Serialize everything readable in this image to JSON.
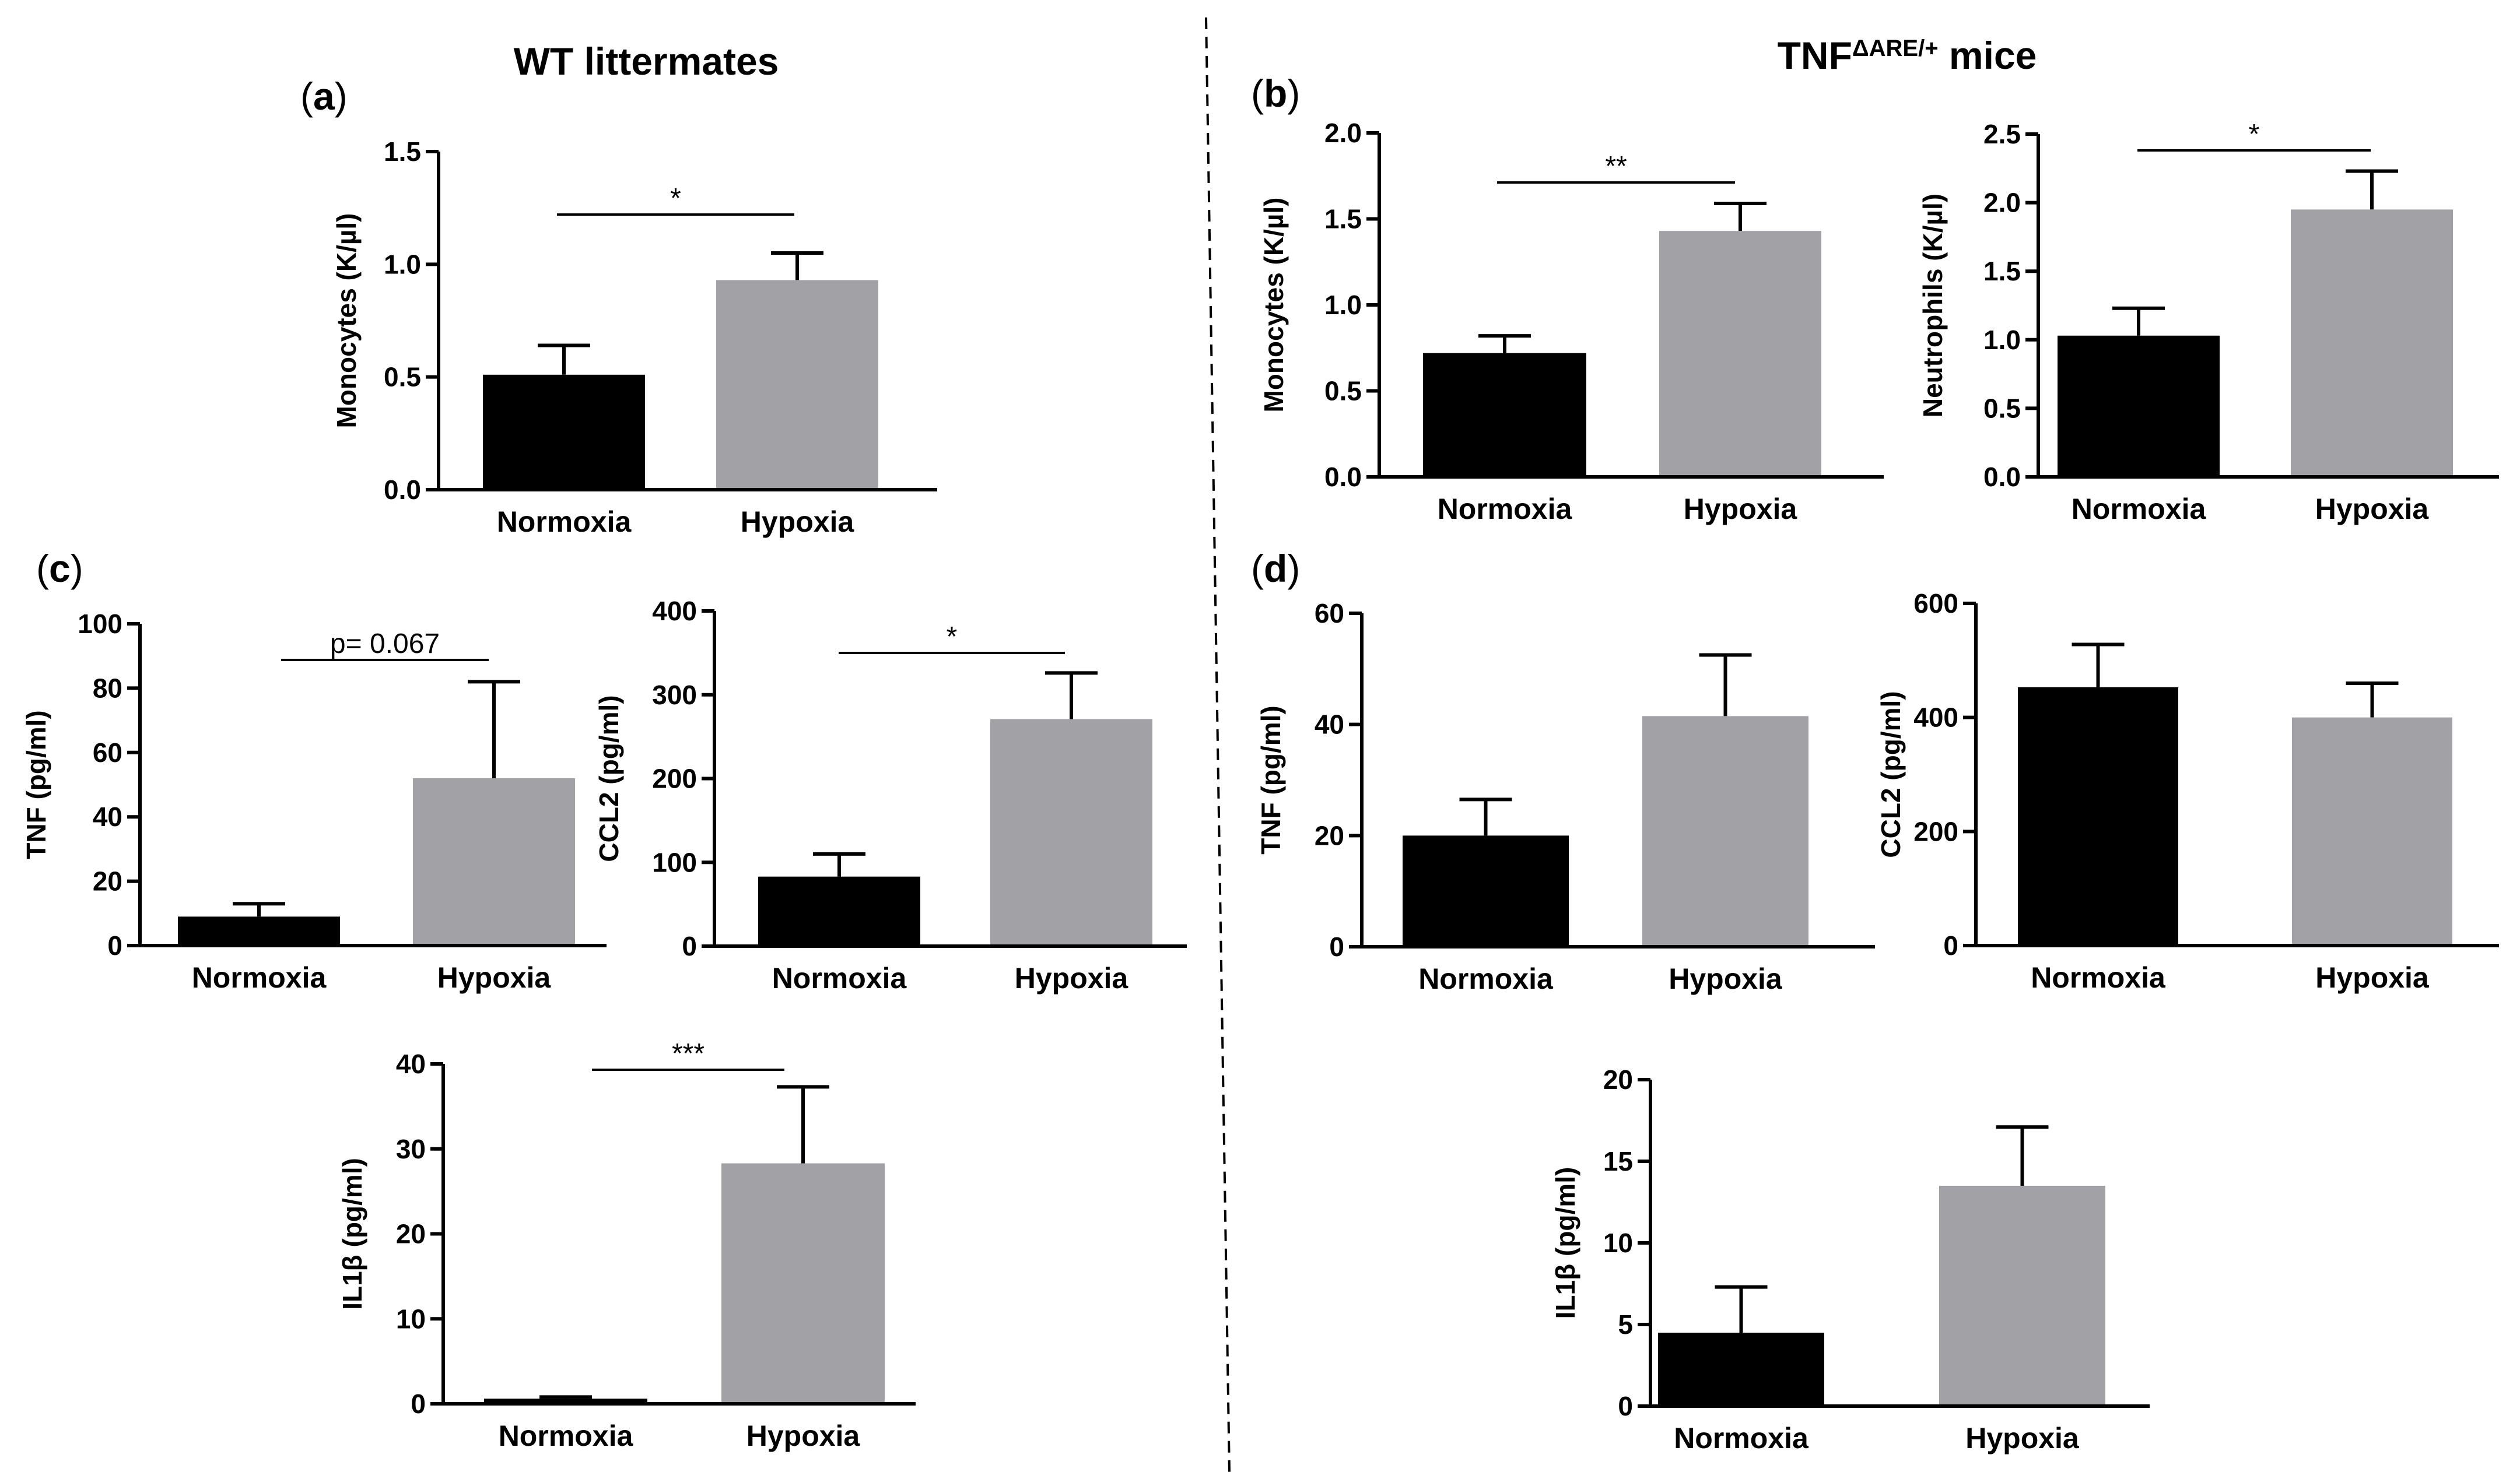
{
  "figure": {
    "title_left": "WT littermates",
    "title_right_main": "TNF",
    "title_right_sup": "ΔARE/+",
    "title_right_rest": " mice"
  },
  "colors": {
    "normoxia": "#000000",
    "hypoxia": "#a2a1a6"
  },
  "chart_data": [
    {
      "id": "a",
      "panel_label": "a",
      "type": "bar",
      "title": "",
      "categories": [
        "Normoxia",
        "Hypoxia"
      ],
      "values": [
        0.51,
        0.93
      ],
      "errors": [
        0.13,
        0.12
      ],
      "ylabel": "Monocytes (K/µl)",
      "xlabel": "",
      "ylim": [
        0,
        1.5
      ],
      "yticks": [
        "0.0",
        "0.5",
        "1.0",
        "1.5"
      ],
      "significance": "*"
    },
    {
      "id": "b1",
      "panel_label": "b",
      "type": "bar",
      "title": "",
      "categories": [
        "Normoxia",
        "Hypoxia"
      ],
      "values": [
        0.72,
        1.43
      ],
      "errors": [
        0.1,
        0.16
      ],
      "ylabel": "Monocytes (K/µl)",
      "xlabel": "",
      "ylim": [
        0,
        2.0
      ],
      "yticks": [
        "0.0",
        "0.5",
        "1.0",
        "1.5",
        "2.0"
      ],
      "significance": "**"
    },
    {
      "id": "b2",
      "panel_label": "",
      "type": "bar",
      "title": "",
      "categories": [
        "Normoxia",
        "Hypoxia"
      ],
      "values": [
        1.03,
        1.95
      ],
      "errors": [
        0.2,
        0.28
      ],
      "ylabel": "Neutrophils (K/µl)",
      "xlabel": "",
      "ylim": [
        0,
        2.5
      ],
      "yticks": [
        "0.0",
        "0.5",
        "1.0",
        "1.5",
        "2.0",
        "2.5"
      ],
      "significance": "*"
    },
    {
      "id": "c1",
      "panel_label": "c",
      "type": "bar",
      "title": "",
      "categories": [
        "Normoxia",
        "Hypoxia"
      ],
      "values": [
        9,
        52
      ],
      "errors": [
        4,
        30
      ],
      "ylabel": "TNF (pg/ml)",
      "xlabel": "",
      "ylim": [
        0,
        100
      ],
      "yticks": [
        "0",
        "20",
        "40",
        "60",
        "80",
        "100"
      ],
      "significance": "p= 0.067"
    },
    {
      "id": "c2",
      "panel_label": "",
      "type": "bar",
      "title": "",
      "categories": [
        "Normoxia",
        "Hypoxia"
      ],
      "values": [
        83,
        271
      ],
      "errors": [
        27,
        55
      ],
      "ylabel": "CCL2 (pg/ml)",
      "xlabel": "",
      "ylim": [
        0,
        400
      ],
      "yticks": [
        "0",
        "100",
        "200",
        "300",
        "400"
      ],
      "significance": "*"
    },
    {
      "id": "c3",
      "panel_label": "",
      "type": "bar",
      "title": "",
      "categories": [
        "Normoxia",
        "Hypoxia"
      ],
      "values": [
        0.6,
        28.3
      ],
      "errors": [
        0.2,
        9
      ],
      "ylabel": "IL1β (pg/ml)",
      "xlabel": "",
      "ylim": [
        0,
        40
      ],
      "yticks": [
        "0",
        "10",
        "20",
        "30",
        "40"
      ],
      "significance": "***"
    },
    {
      "id": "d1",
      "panel_label": "d",
      "type": "bar",
      "title": "",
      "categories": [
        "Normoxia",
        "Hypoxia"
      ],
      "values": [
        20,
        41.5
      ],
      "errors": [
        6.5,
        11
      ],
      "ylabel": "TNF (pg/ml)",
      "xlabel": "",
      "ylim": [
        0,
        60
      ],
      "yticks": [
        "0",
        "20",
        "40",
        "60"
      ],
      "significance": ""
    },
    {
      "id": "d2",
      "panel_label": "",
      "type": "bar",
      "title": "",
      "categories": [
        "Normoxia",
        "Hypoxia"
      ],
      "values": [
        453,
        400
      ],
      "errors": [
        75,
        60
      ],
      "ylabel": "CCL2 (pg/ml)",
      "xlabel": "",
      "ylim": [
        0,
        600
      ],
      "yticks": [
        "0",
        "200",
        "400",
        "600"
      ],
      "significance": ""
    },
    {
      "id": "d3",
      "panel_label": "",
      "type": "bar",
      "title": "",
      "categories": [
        "Normoxia",
        "Hypoxia"
      ],
      "values": [
        4.5,
        13.5
      ],
      "errors": [
        2.8,
        3.6
      ],
      "ylabel": "IL1β (pg/ml)",
      "xlabel": "",
      "ylim": [
        0,
        20
      ],
      "yticks": [
        "0",
        "5",
        "10",
        "15",
        "20"
      ],
      "significance": ""
    }
  ]
}
